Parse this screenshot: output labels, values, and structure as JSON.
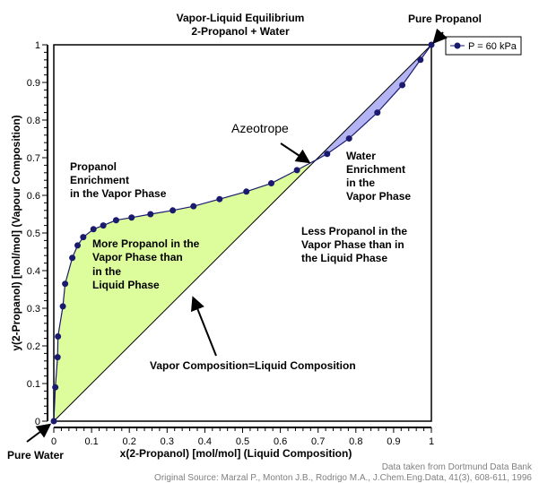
{
  "chart_data": {
    "type": "line",
    "title": [
      "Vapor-Liquid Equilibrium",
      "2-Propanol + Water"
    ],
    "xlabel": "x(2-Propanol) [mol/mol] (Liquid Composition)",
    "ylabel": "y(2-Propanol) [mol/mol] (Vapour Composition)",
    "xlim": [
      0,
      1
    ],
    "ylim": [
      0,
      1
    ],
    "xticks": [
      "0",
      "0.1",
      "0.2",
      "0.3",
      "0.4",
      "0.5",
      "0.6",
      "0.7",
      "0.8",
      "0.9",
      "1"
    ],
    "yticks": [
      "0",
      "0.1",
      "0.2",
      "0.3",
      "0.4",
      "0.5",
      "0.6",
      "0.7",
      "0.8",
      "0.9",
      "1"
    ],
    "legend": {
      "label": "P = 60 kPa",
      "placement": "top-right"
    },
    "series": [
      {
        "name": "P = 60 kPa",
        "color": "#1a1a6e",
        "x": [
          0,
          0.004,
          0.01,
          0.011,
          0.024,
          0.03,
          0.049,
          0.063,
          0.078,
          0.105,
          0.131,
          0.165,
          0.206,
          0.256,
          0.315,
          0.37,
          0.439,
          0.51,
          0.576,
          0.644,
          0.724,
          0.782,
          0.857,
          0.923,
          0.971,
          1
        ],
        "y": [
          0,
          0.09,
          0.17,
          0.225,
          0.305,
          0.365,
          0.434,
          0.467,
          0.489,
          0.51,
          0.52,
          0.534,
          0.541,
          0.55,
          0.56,
          0.571,
          0.59,
          0.61,
          0.632,
          0.667,
          0.71,
          0.751,
          0.82,
          0.893,
          0.96,
          1
        ]
      }
    ],
    "azeotrope": 0.685,
    "fill_colors": {
      "enrich": "#ddfc9c",
      "water": "#b4b4f4"
    },
    "annotations": {
      "pure_propanol": "Pure Propanol",
      "pure_water": "Pure Water",
      "azeotrope": "Azeotrope",
      "propanol_enrichment": [
        "Propanol",
        "Enrichment",
        "in the Vapor Phase"
      ],
      "water_enrichment": [
        "Water",
        "Enrichment",
        "in the",
        "Vapor Phase"
      ],
      "more_propanol": [
        "More Propanol in the",
        "Vapor Phase than",
        "in the",
        "Liquid Phase"
      ],
      "less_propanol": [
        "Less Propanol in the",
        "Vapor Phase than in",
        "the Liquid Phase"
      ],
      "diagonal": "Vapor Composition=Liquid Composition"
    },
    "source": [
      "Data taken from Dortmund Data Bank",
      "Original Source: Marzal P., Monton J.B., Rodrigo M.A., J.Chem.Eng.Data, 41(3), 608-611, 1996"
    ]
  }
}
